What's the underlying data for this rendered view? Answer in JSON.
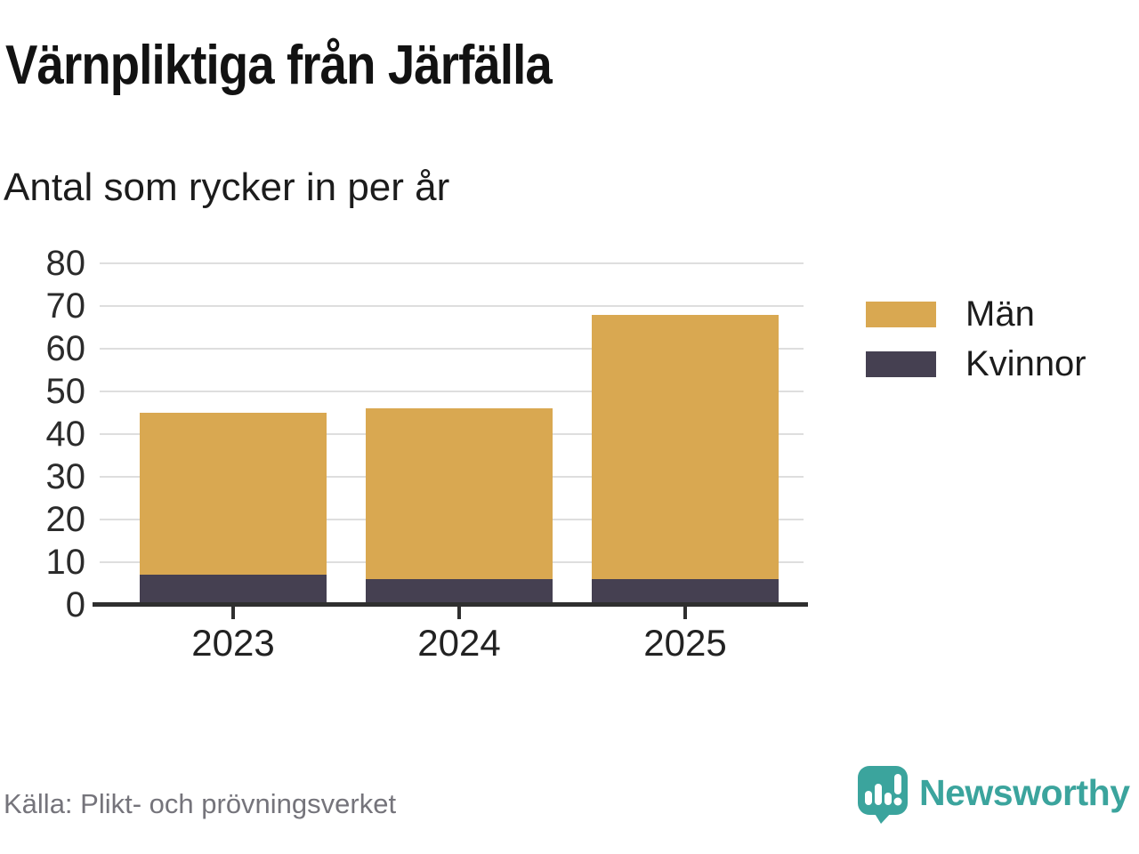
{
  "header": {
    "title": "Värnpliktiga från Järfälla",
    "subtitle": "Antal som rycker in per år"
  },
  "chart_data": {
    "type": "bar",
    "stacked": true,
    "title": "Värnpliktiga från Järfälla",
    "subtitle": "Antal som rycker in per år",
    "categories": [
      "2023",
      "2024",
      "2025"
    ],
    "series": [
      {
        "name": "Män",
        "color_key": "men",
        "values": [
          38,
          40,
          62
        ]
      },
      {
        "name": "Kvinnor",
        "color_key": "women",
        "values": [
          7,
          6,
          6
        ]
      }
    ],
    "stack_bottom_to_top": [
      "Kvinnor",
      "Män"
    ],
    "totals": [
      45,
      46,
      68
    ],
    "ylim": [
      0,
      80
    ],
    "yticks": [
      0,
      10,
      20,
      30,
      40,
      50,
      60,
      70,
      80
    ],
    "grid": "horizontal",
    "legend_position": "right"
  },
  "colors": {
    "men": "#D9A851",
    "women": "#454051",
    "grid": "#DEDEDE",
    "axis": "#2F2F2F",
    "source_text": "#75747B",
    "brand_teal": "#3BA49D"
  },
  "footer": {
    "source": "Källa: Plikt- och prövningsverket",
    "brand": "Newsworthy",
    "logo_icon": "newsworthy-pin-chart-icon"
  }
}
